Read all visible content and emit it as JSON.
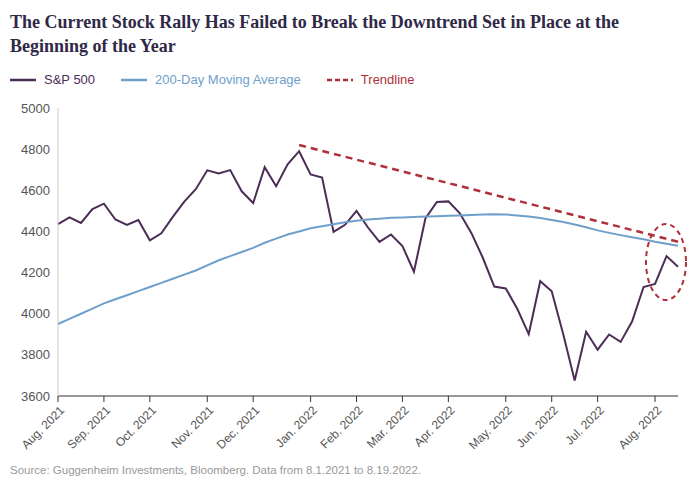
{
  "chart_data": {
    "type": "line",
    "title": "The Current Stock Rally Has Failed to Break the Downtrend Set in Place at the Beginning of the Year",
    "source": "Source: Guggenheim Investments, Bloomberg. Data from 8.1.2021 to 8.19.2022.",
    "categories": [
      "Aug. 2021",
      null,
      null,
      null,
      "Sep. 2021",
      null,
      null,
      null,
      "Oct. 2021",
      null,
      null,
      null,
      null,
      "Nov. 2021",
      null,
      null,
      null,
      "Dec. 2021",
      null,
      null,
      null,
      null,
      "Jan. 2022",
      null,
      null,
      null,
      "Feb. 2022",
      null,
      null,
      null,
      "Mar. 2022",
      null,
      null,
      null,
      "Apr. 2022",
      null,
      null,
      null,
      null,
      "May. 2022",
      null,
      null,
      null,
      "Jun. 2022",
      null,
      null,
      null,
      "Jul. 2022",
      null,
      null,
      null,
      null,
      "Aug. 2022",
      null,
      null
    ],
    "series": [
      {
        "name": "S&P 500",
        "color": "#4b2d55",
        "line_style": "solid",
        "values": [
          4436,
          4468,
          4441,
          4509,
          4535,
          4458,
          4432,
          4455,
          4357,
          4391,
          4471,
          4545,
          4605,
          4697,
          4682,
          4698,
          4595,
          4538,
          4712,
          4620,
          4726,
          4790,
          4677,
          4662,
          4398,
          4432,
          4500,
          4419,
          4349,
          4385,
          4329,
          4204,
          4463,
          4543,
          4546,
          4488,
          4393,
          4272,
          4132,
          4123,
          4024,
          3901,
          4158,
          4109,
          3901,
          3675,
          3912,
          3825,
          3899,
          3863,
          3962,
          4130,
          4145,
          4280,
          4228
        ]
      },
      {
        "name": "200-Day Moving Average",
        "color": "#6f9fcb",
        "line_style": "solid",
        "values": [
          3950,
          3975,
          4000,
          4025,
          4050,
          4070,
          4090,
          4110,
          4130,
          4150,
          4170,
          4190,
          4210,
          4235,
          4260,
          4280,
          4300,
          4320,
          4345,
          4365,
          4385,
          4400,
          4415,
          4425,
          4435,
          4445,
          4452,
          4458,
          4462,
          4466,
          4468,
          4470,
          4472,
          4474,
          4476,
          4478,
          4480,
          4482,
          4483,
          4482,
          4478,
          4472,
          4465,
          4456,
          4446,
          4434,
          4420,
          4405,
          4393,
          4382,
          4372,
          4362,
          4350,
          4340,
          4330
        ]
      },
      {
        "name": "Trendline",
        "color": "#b0303a",
        "line_style": "dashed",
        "values": [
          null,
          null,
          null,
          null,
          null,
          null,
          null,
          null,
          null,
          null,
          null,
          null,
          null,
          null,
          null,
          null,
          null,
          null,
          null,
          null,
          null,
          4820,
          null,
          null,
          null,
          null,
          null,
          null,
          null,
          null,
          null,
          null,
          null,
          null,
          null,
          null,
          null,
          null,
          null,
          null,
          null,
          null,
          null,
          null,
          null,
          null,
          null,
          null,
          null,
          null,
          null,
          null,
          null,
          null,
          4350
        ]
      }
    ],
    "ylim": [
      3600,
      5000
    ],
    "yticks": [
      3600,
      3800,
      4000,
      4200,
      4400,
      4600,
      4800,
      5000
    ],
    "grid": false,
    "legend": "top-left"
  }
}
